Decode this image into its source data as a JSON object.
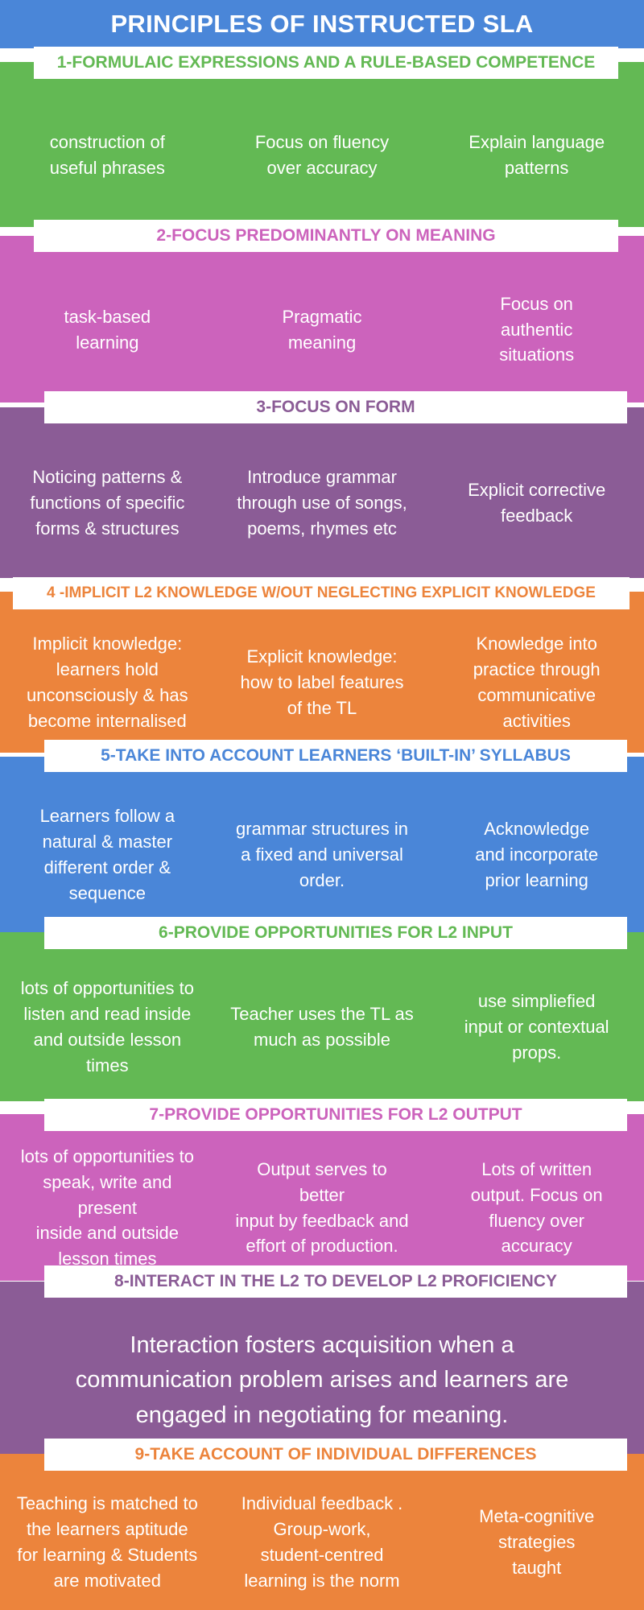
{
  "title": "PRINCIPLES OF INSTRUCTED SLA",
  "colors": {
    "green": "#63b954",
    "pink": "#cc63bc",
    "purple": "#8b5c96",
    "orange": "#ec843c",
    "blue": "#4a86d8"
  },
  "sections": [
    {
      "header": "1-FORMULAIC EXPRESSIONS AND A RULE-BASED COMPETENCE",
      "color": "green",
      "columns": [
        "construction of\nuseful phrases",
        "Focus on fluency\nover accuracy",
        "Explain language\npatterns"
      ]
    },
    {
      "header": "2-FOCUS PREDOMINANTLY ON MEANING",
      "color": "pink",
      "columns": [
        "task-based\nlearning",
        "Pragmatic\nmeaning",
        "Focus on\nauthentic\nsituations"
      ]
    },
    {
      "header": "3-FOCUS ON FORM",
      "color": "purple",
      "columns": [
        "Noticing patterns &\nfunctions of specific\nforms & structures",
        "Introduce grammar\nthrough use of songs,\npoems, rhymes etc",
        "Explicit corrective\nfeedback"
      ]
    },
    {
      "header": "4 -IMPLICIT L2  KNOWLEDGE W/OUT NEGLECTING EXPLICIT KNOWLEDGE",
      "color": "orange",
      "columns": [
        "Implicit knowledge:\nlearners hold\nunconsciously  & has\nbecome internalised",
        "Explicit knowledge:\nhow to label features\nof the TL",
        "Knowledge into\npractice through\ncommunicative\nactivities"
      ]
    },
    {
      "header": "5-TAKE INTO ACCOUNT LEARNERS ‘BUILT-IN’ SYLLABUS",
      "color": "blue",
      "columns": [
        "Learners follow a\nnatural & master\ndifferent order &\nsequence",
        "grammar structures in\na fixed and universal\norder.",
        "Acknowledge\nand incorporate\nprior learning"
      ]
    },
    {
      "header": "6-PROVIDE OPPORTUNITIES FOR L2 INPUT",
      "color": "green",
      "columns": [
        "lots of opportunities to\nlisten and read inside\nand outside lesson\ntimes",
        "Teacher uses the TL as\nmuch as possible",
        "use simpliefied\ninput or contextual\nprops."
      ]
    },
    {
      "header": "7-PROVIDE OPPORTUNITIES FOR L2 OUTPUT",
      "color": "pink",
      "columns": [
        "lots of opportunities to\nspeak, write and present\ninside and outside\nlesson times",
        "Output serves to\nbetter\ninput by feedback and\neffort of production.",
        "Lots of written\noutput. Focus on\nfluency over\naccuracy"
      ]
    },
    {
      "header": "8-INTERACT IN THE L2 TO DEVELOP L2 PROFICIENCY",
      "color": "purple",
      "text": "Interaction fosters acquisition when a\ncommunication problem arises and learners are\nengaged in negotiating for meaning."
    },
    {
      "header": "9-TAKE ACCOUNT OF INDIVIDUAL DIFFERENCES",
      "color": "orange",
      "columns": [
        "Teaching is matched to\nthe learners aptitude\nfor learning &  Students\nare motivated",
        "Individual feedback .\nGroup-work,\nstudent-centred\nlearning is the norm",
        "Meta-cognitive\nstrategies\ntaught"
      ]
    }
  ]
}
